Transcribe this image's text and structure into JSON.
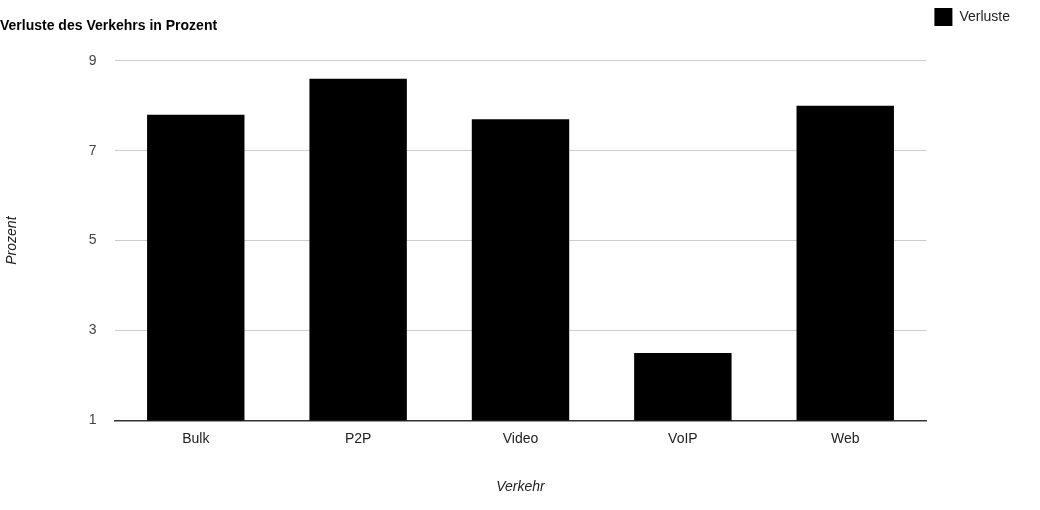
{
  "chart_data": {
    "type": "bar",
    "title": "Verluste des Verkehrs in Prozent",
    "xlabel": "Verkehr",
    "ylabel": "Prozent",
    "categories": [
      "Bulk",
      "P2P",
      "Video",
      "VoIP",
      "Web"
    ],
    "series": [
      {
        "name": "Verluste",
        "color": "#000000",
        "values": [
          7.8,
          8.6,
          7.7,
          2.5,
          8.0
        ]
      }
    ],
    "ylim": [
      1,
      9
    ],
    "yticks": [
      1,
      3,
      5,
      7,
      9
    ],
    "grid": "y",
    "legend": "top right"
  }
}
